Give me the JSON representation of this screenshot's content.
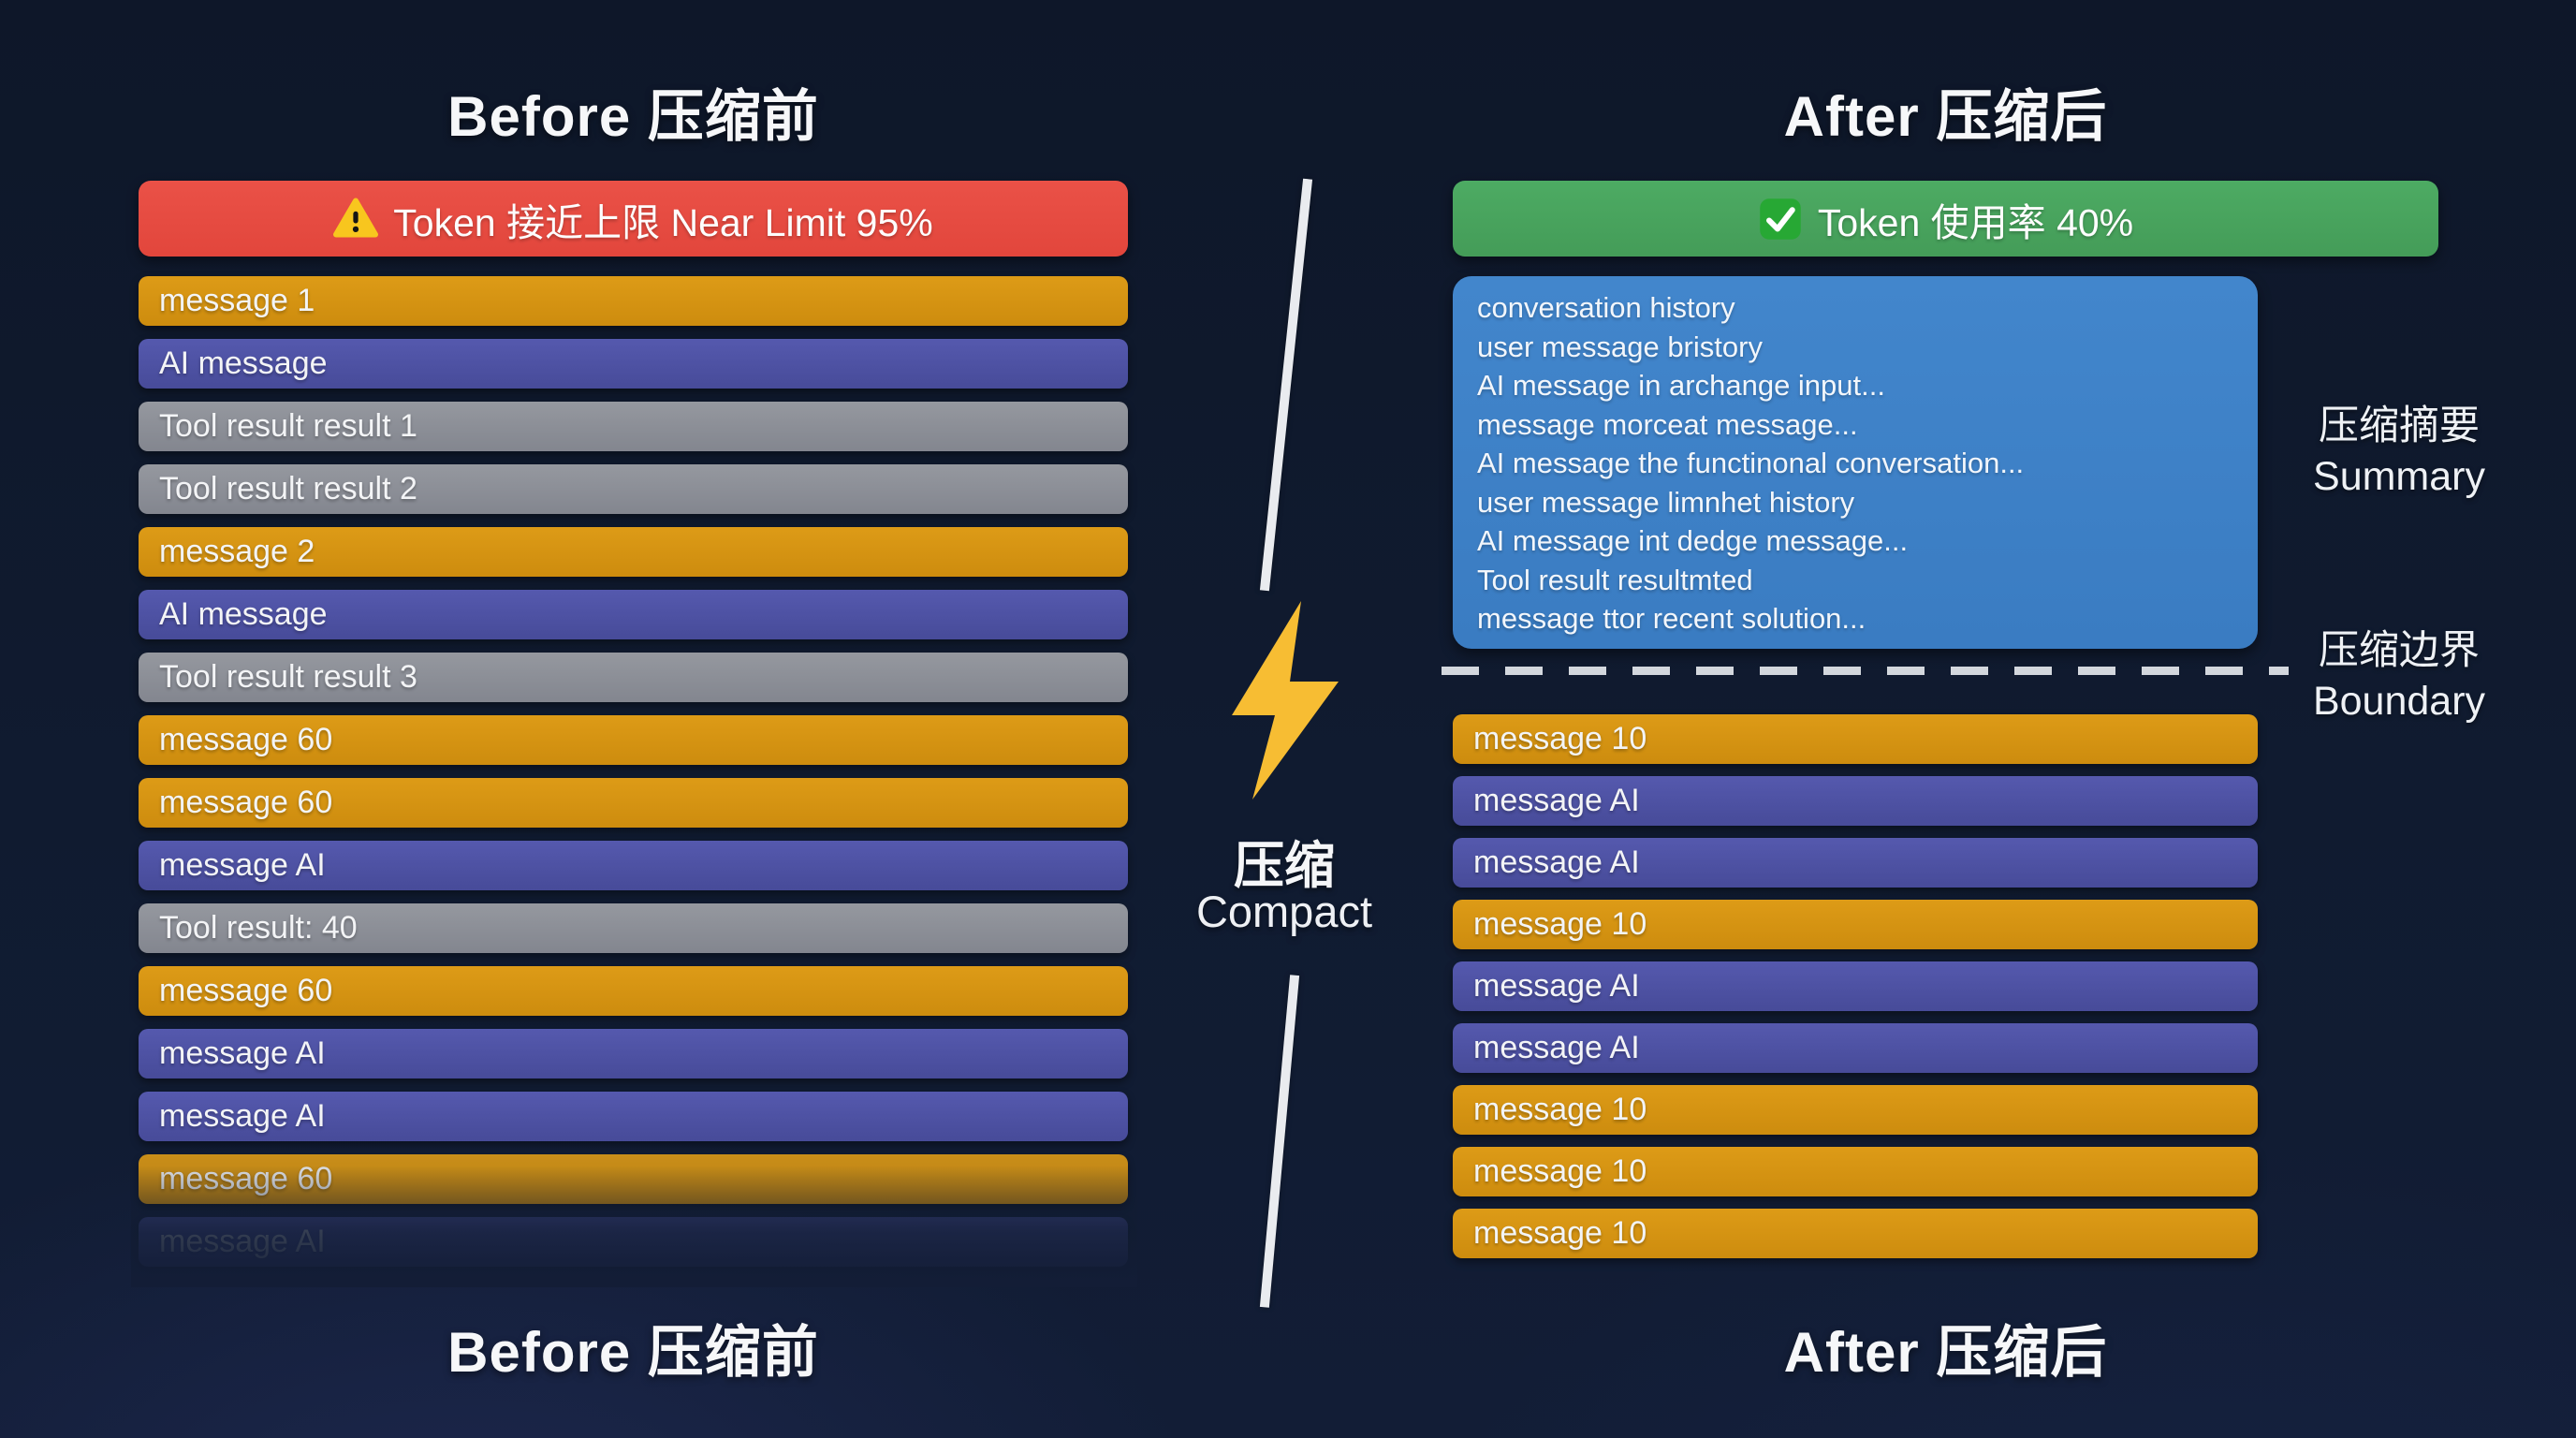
{
  "titles": {
    "top_left": "Before 压缩前",
    "top_right": "After 压缩后",
    "bottom_left": "Before 压缩前",
    "bottom_right": "After 压缩后"
  },
  "before": {
    "banner": {
      "icon": "warning-icon",
      "text": "Token 接近上限 Near Limit 95%"
    },
    "messages": [
      {
        "label": "message 1",
        "type": "user"
      },
      {
        "label": "AI message",
        "type": "ai"
      },
      {
        "label": "Tool result result 1",
        "type": "tool"
      },
      {
        "label": "Tool result result 2",
        "type": "tool"
      },
      {
        "label": "message 2",
        "type": "user"
      },
      {
        "label": "AI message",
        "type": "ai"
      },
      {
        "label": "Tool result result 3",
        "type": "tool"
      },
      {
        "label": "message 60",
        "type": "user"
      },
      {
        "label": "message 60",
        "type": "user"
      },
      {
        "label": "message AI",
        "type": "ai"
      },
      {
        "label": "Tool result: 40",
        "type": "tool"
      },
      {
        "label": "message 60",
        "type": "user"
      },
      {
        "label": "message AI",
        "type": "ai"
      },
      {
        "label": "message AI",
        "type": "ai"
      },
      {
        "label": "message 60",
        "type": "user",
        "opacity": 0.9
      },
      {
        "label": "message AI",
        "type": "ai",
        "opacity": 0.55
      }
    ]
  },
  "compact": {
    "zh": "压缩",
    "en": "Compact",
    "icon": "lightning-bolt-icon"
  },
  "after": {
    "banner": {
      "icon": "check-icon",
      "text": "Token 使用率 40%"
    },
    "summary_lines": [
      "conversation history",
      "user message bristory",
      "AI message in archange input...",
      "message morceat message...",
      "AI message the functinonal conversation...",
      "user message limnhet history",
      "AI message int dedge message...",
      "Tool result resultmted",
      "message ttor recent solution..."
    ],
    "summary_label": {
      "zh": "压缩摘要",
      "en": "Summary"
    },
    "boundary_label": {
      "zh": "压缩边界",
      "en": "Boundary"
    },
    "messages": [
      {
        "label": "message 10",
        "type": "user"
      },
      {
        "label": "message AI",
        "type": "ai"
      },
      {
        "label": "message AI",
        "type": "ai"
      },
      {
        "label": "message 10",
        "type": "user"
      },
      {
        "label": "message AI",
        "type": "ai"
      },
      {
        "label": "message AI",
        "type": "ai"
      },
      {
        "label": "message 10",
        "type": "user"
      },
      {
        "label": "message 10",
        "type": "user"
      },
      {
        "label": "message 10",
        "type": "user"
      }
    ]
  },
  "colors": {
    "background": "#101b30",
    "user_bar": "#d59310",
    "ai_bar": "#4f53a6",
    "tool_bar": "#8f929c",
    "warning_banner": "#e6483e",
    "success_banner": "#48a55e",
    "summary_box": "#3e82c8",
    "lightning_bolt": "#f7bd33",
    "boundary_dash": "#d3d7dd",
    "text": "#f2f4f7"
  }
}
